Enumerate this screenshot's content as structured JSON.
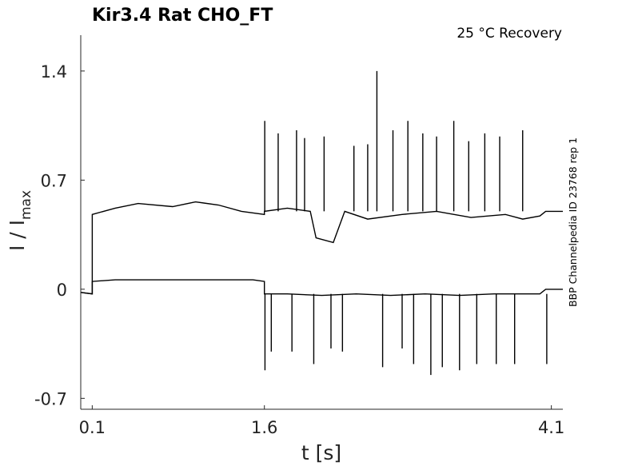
{
  "chart_data": {
    "type": "line",
    "title": "Kir3.4  Rat  CHO_FT",
    "subtitle": "25 °C  Recovery",
    "xlabel": "t [s]",
    "ylabel_main": "I / I",
    "ylabel_sub": "max",
    "side_note": "BBP Channelpedia ID 23768 rep 1",
    "xlim": [
      0.0,
      4.2
    ],
    "ylim": [
      -0.77,
      1.63
    ],
    "x_ticks": [
      0.1,
      1.6,
      4.1
    ],
    "x_tick_labels": [
      "0.1",
      "1.6",
      "4.1"
    ],
    "y_ticks": [
      -0.7,
      0,
      0.7,
      1.4
    ],
    "y_tick_labels": [
      "-0.7",
      "0",
      "0.7",
      "1.4"
    ],
    "grid": false,
    "series": [
      {
        "x": [
          0.0,
          0.1,
          0.1,
          0.3,
          0.5,
          0.8,
          1.0,
          1.2,
          1.4,
          1.6,
          1.6,
          1.8,
          2.0,
          2.05,
          2.2,
          2.3,
          2.5,
          2.8,
          3.1,
          3.4,
          3.7,
          3.85,
          4.0,
          4.05,
          4.1,
          4.2
        ],
        "y": [
          -0.02,
          -0.03,
          0.48,
          0.52,
          0.55,
          0.53,
          0.56,
          0.54,
          0.5,
          0.48,
          0.5,
          0.52,
          0.5,
          0.33,
          0.3,
          0.5,
          0.45,
          0.48,
          0.5,
          0.46,
          0.48,
          0.45,
          0.47,
          0.5,
          0.5,
          0.5
        ]
      },
      {
        "x": [
          0.0,
          0.1,
          0.1,
          0.3,
          0.6,
          0.9,
          1.2,
          1.5,
          1.6,
          1.6,
          1.8,
          2.1,
          2.4,
          2.7,
          3.0,
          3.3,
          3.6,
          3.9,
          4.0,
          4.05,
          4.2
        ],
        "y": [
          -0.02,
          -0.03,
          0.05,
          0.06,
          0.06,
          0.06,
          0.06,
          0.06,
          0.05,
          -0.03,
          -0.03,
          -0.04,
          -0.03,
          -0.04,
          -0.03,
          -0.04,
          -0.03,
          -0.03,
          -0.03,
          0.0,
          0.0
        ]
      }
    ],
    "spikes": [
      {
        "x": 1.603,
        "y": 1.08
      },
      {
        "x": 1.605,
        "y": -0.52
      },
      {
        "x": 1.66,
        "y": -0.4
      },
      {
        "x": 1.72,
        "y": 1.0
      },
      {
        "x": 1.84,
        "y": -0.4
      },
      {
        "x": 1.88,
        "y": 1.02
      },
      {
        "x": 1.95,
        "y": 0.97
      },
      {
        "x": 2.03,
        "y": -0.48
      },
      {
        "x": 2.12,
        "y": 0.98
      },
      {
        "x": 2.18,
        "y": -0.38
      },
      {
        "x": 2.28,
        "y": -0.4
      },
      {
        "x": 2.38,
        "y": 0.92
      },
      {
        "x": 2.5,
        "y": 0.93
      },
      {
        "x": 2.58,
        "y": 1.4
      },
      {
        "x": 2.63,
        "y": -0.5
      },
      {
        "x": 2.72,
        "y": 1.02
      },
      {
        "x": 2.8,
        "y": -0.38
      },
      {
        "x": 2.85,
        "y": 1.08
      },
      {
        "x": 2.9,
        "y": -0.48
      },
      {
        "x": 2.98,
        "y": 1.0
      },
      {
        "x": 3.05,
        "y": -0.55
      },
      {
        "x": 3.1,
        "y": 0.98
      },
      {
        "x": 3.15,
        "y": -0.5
      },
      {
        "x": 3.25,
        "y": 1.08
      },
      {
        "x": 3.3,
        "y": -0.52
      },
      {
        "x": 3.38,
        "y": 0.95
      },
      {
        "x": 3.45,
        "y": -0.48
      },
      {
        "x": 3.52,
        "y": 1.0
      },
      {
        "x": 3.62,
        "y": -0.48
      },
      {
        "x": 3.65,
        "y": 0.98
      },
      {
        "x": 3.78,
        "y": -0.48
      },
      {
        "x": 3.85,
        "y": 1.02
      },
      {
        "x": 4.06,
        "y": -0.48
      }
    ]
  }
}
